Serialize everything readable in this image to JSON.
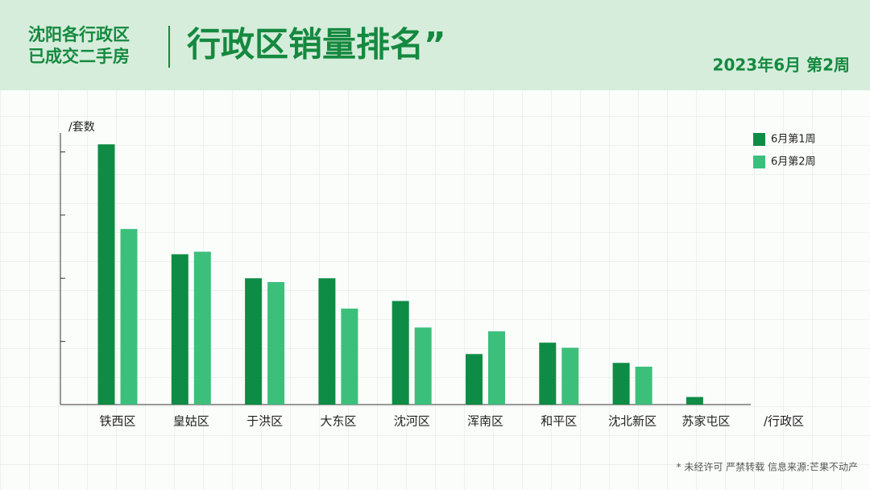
{
  "chart_data": {
    "type": "bar",
    "title": "行政区销量排名”",
    "subtitle": [
      "沈阳各行政区",
      "已成交二手房"
    ],
    "date": "2023年6月 第2周",
    "y_label": "/套数",
    "x_label": "/行政区",
    "note": "* 未经许可 严禁转载 信息来源:芒果不动产",
    "categories": [
      "铁西区",
      "皇姑区",
      "于洪区",
      "大东区",
      "沈河区",
      "浑南区",
      "和平区",
      "沈北新区",
      "苏家屯区"
    ],
    "series": [
      {
        "name": "6月第1周",
        "color": "#0e8c45",
        "values": [
          206,
          119,
          100,
          100,
          82,
          40,
          49,
          33,
          6
        ]
      },
      {
        "name": "6月第2周",
        "color": "#3dbf7c",
        "values": [
          139,
          121,
          97,
          76,
          61,
          58,
          45,
          30,
          null
        ]
      }
    ],
    "ylim": [
      0,
      215
    ],
    "yticks": [
      0,
      50,
      100,
      150,
      200
    ],
    "legend": "upper right"
  }
}
